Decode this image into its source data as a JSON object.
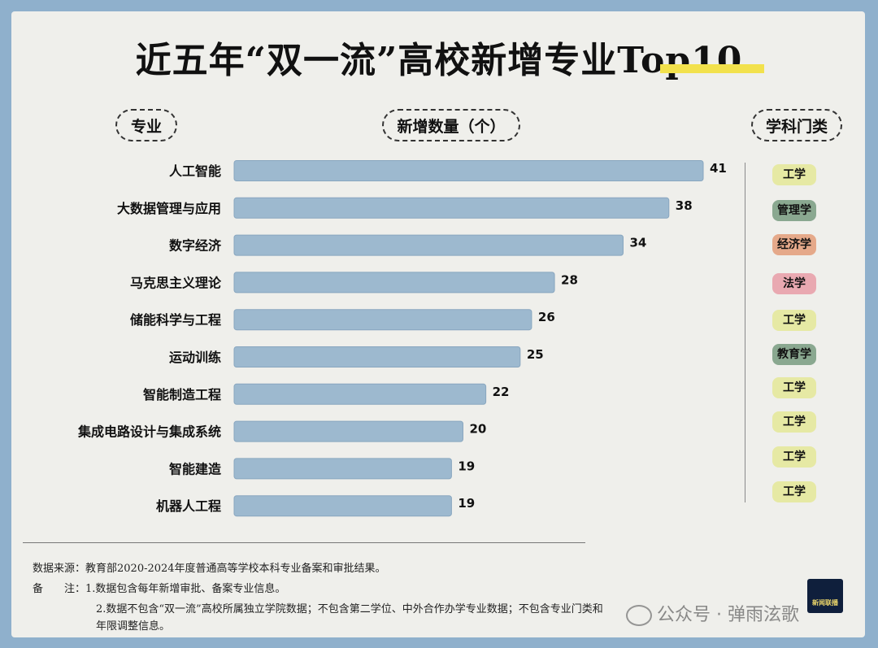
{
  "title": "近五年“双一流”高校新增专业Top10",
  "headers": {
    "major": "专业",
    "count": "新增数量（个）",
    "category": "学科门类"
  },
  "colors": {
    "bar": "#9db9cf",
    "bar_stroke": "#88a6bf"
  },
  "chart_data": {
    "type": "bar",
    "orientation": "horizontal",
    "title": "近五年“双一流”高校新增专业Top10",
    "xlabel": "新增数量（个）",
    "ylabel": "专业",
    "categories": [
      "人工智能",
      "大数据管理与应用",
      "数字经济",
      "马克思主义理论",
      "储能科学与工程",
      "运动训练",
      "智能制造工程",
      "集成电路设计与集成系统",
      "智能建造",
      "机器人工程"
    ],
    "values": [
      41,
      38,
      34,
      28,
      26,
      25,
      22,
      20,
      19,
      19
    ],
    "xlim": [
      0,
      41
    ],
    "grid": false
  },
  "categories": [
    {
      "label": "工学",
      "color": "#e6e9a4"
    },
    {
      "label": "管理学",
      "color": "#8aa890"
    },
    {
      "label": "经济学",
      "color": "#e5a98a"
    },
    {
      "label": "法学",
      "color": "#e9a9b1"
    },
    {
      "label": "工学",
      "color": "#e6e9a4"
    },
    {
      "label": "教育学",
      "color": "#8aa890"
    },
    {
      "label": "工学",
      "color": "#e6e9a4"
    },
    {
      "label": "工学",
      "color": "#e6e9a4"
    },
    {
      "label": "工学",
      "color": "#e6e9a4"
    },
    {
      "label": "工学",
      "color": "#e6e9a4"
    }
  ],
  "notes": {
    "source": "数据来源：教育部2020-2024年度普通高等学校本科专业备案和审批结果。",
    "remark1": "备　　注：1.数据包含每年新增审批、备案专业信息。",
    "remark2a": "2.数据不包含“双一流”高校所属独立学院数据；不包含第二学位、中外合作办学专业数据；不包含专业门类和",
    "remark2b": "年限调整信息。"
  },
  "logo_text": "新闻联播",
  "watermark": "公众号 · 弹雨泫歌"
}
